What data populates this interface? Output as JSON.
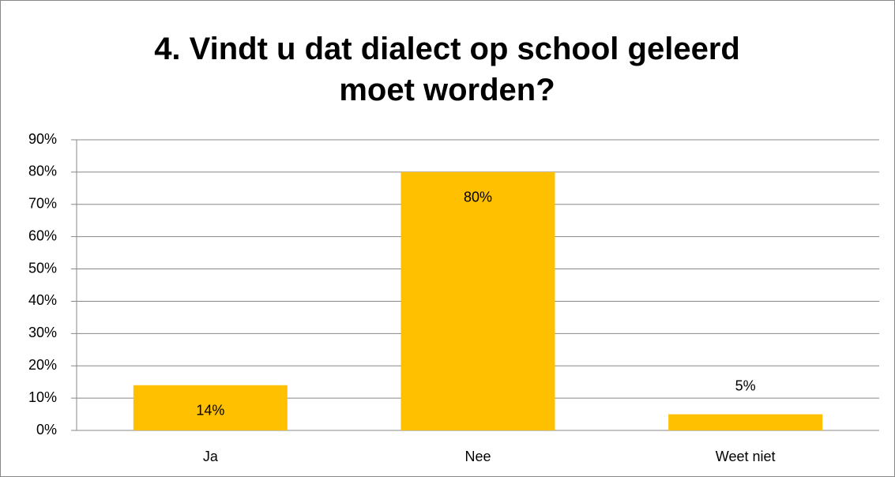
{
  "chart_data": {
    "type": "bar",
    "title": "4. Vindt u dat dialect op school geleerd moet worden?",
    "categories": [
      "Ja",
      "Nee",
      "Weet niet"
    ],
    "values": [
      14,
      80,
      5
    ],
    "value_labels": [
      "14%",
      "80%",
      "5%"
    ],
    "color": "#ffc000",
    "ylim": [
      0,
      90
    ],
    "yticks": [
      {
        "value": 0,
        "label": "0%"
      },
      {
        "value": 10,
        "label": "10%"
      },
      {
        "value": 20,
        "label": "20%"
      },
      {
        "value": 30,
        "label": "30%"
      },
      {
        "value": 40,
        "label": "40%"
      },
      {
        "value": 50,
        "label": "50%"
      },
      {
        "value": 60,
        "label": "60%"
      },
      {
        "value": 70,
        "label": "70%"
      },
      {
        "value": 80,
        "label": "80%"
      },
      {
        "value": 90,
        "label": "90%"
      }
    ],
    "grid": true
  }
}
